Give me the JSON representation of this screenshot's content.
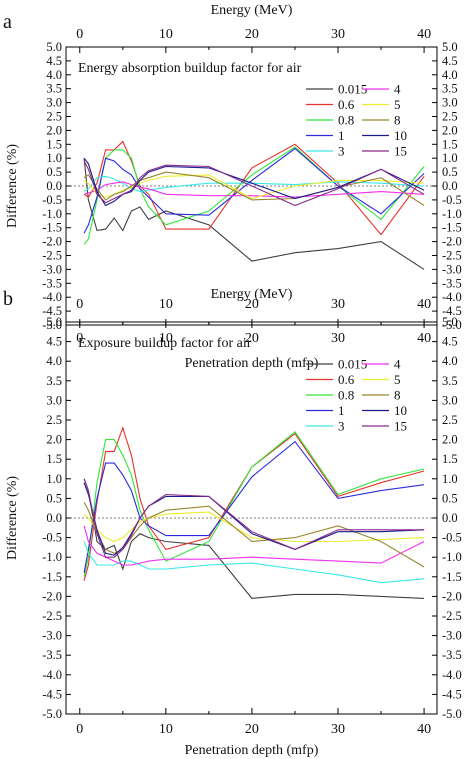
{
  "panels": [
    {
      "label": "a",
      "chart_data": {
        "type": "line",
        "title": "Energy absorption buildup factor for air",
        "xlabel": "Penetration depth (mfp)",
        "ylabel": "Difference (%)",
        "top_xlabel": "Energy (MeV)",
        "xlim": [
          -1.6,
          41.5
        ],
        "ylim": [
          -5.0,
          5.0
        ],
        "xticks": [
          0,
          10,
          20,
          30,
          40
        ],
        "yticks": [
          -5.0,
          -4.5,
          -4.0,
          -3.5,
          -3.0,
          -2.5,
          -2.0,
          -1.5,
          -1.0,
          -0.5,
          0.0,
          0.5,
          1.0,
          1.5,
          2.0,
          2.5,
          3.0,
          3.5,
          4.0,
          4.5,
          5.0
        ],
        "ytick_labels": [
          "-5.0",
          "-4.5",
          "-4.0",
          "-3.5",
          "-3.0",
          "-2.5",
          "-2.0",
          "-1.5",
          "-1.0",
          "-0.5",
          "0.0",
          "0.5",
          "1.0",
          "1.5",
          "2.0",
          "2.5",
          "3.0",
          "3.5",
          "4.0",
          "4.5",
          "5.0"
        ],
        "x": [
          0.5,
          1,
          2,
          3,
          4,
          5,
          6,
          7,
          8,
          10,
          15,
          20,
          25,
          30,
          35,
          40
        ],
        "series": [
          {
            "name": "0.015",
            "color": "#404040",
            "values": [
              1.0,
              -0.5,
              -1.6,
              -1.55,
              -1.15,
              -1.6,
              -0.9,
              -0.75,
              -1.2,
              -0.9,
              -1.4,
              -2.7,
              -2.4,
              -2.25,
              -2.0,
              -3.0
            ]
          },
          {
            "name": "0.6",
            "color": "#e8322a",
            "values": [
              -0.3,
              -0.4,
              0.1,
              1.3,
              1.3,
              1.6,
              0.9,
              0.0,
              -0.3,
              -1.55,
              -1.55,
              0.65,
              1.5,
              0.1,
              -1.75,
              0.35
            ]
          },
          {
            "name": "0.8",
            "color": "#2ee838",
            "values": [
              -2.1,
              -1.9,
              -0.5,
              1.0,
              1.3,
              1.3,
              1.0,
              -0.1,
              -0.75,
              -1.4,
              -0.9,
              0.4,
              1.4,
              0.0,
              -1.2,
              0.7
            ]
          },
          {
            "name": "1",
            "color": "#2a2ae0",
            "values": [
              -1.7,
              -1.4,
              -0.4,
              1.0,
              0.9,
              0.6,
              0.4,
              -0.1,
              -0.4,
              -1.0,
              -1.05,
              0.2,
              1.35,
              0.0,
              -1.0,
              0.45
            ]
          },
          {
            "name": "3",
            "color": "#38e8e8",
            "values": [
              -0.2,
              -0.1,
              0.3,
              0.35,
              0.25,
              0.1,
              -0.1,
              -0.2,
              -0.15,
              -0.05,
              0.1,
              0.1,
              0.05,
              0.15,
              0.1,
              0.0
            ]
          },
          {
            "name": "4",
            "color": "#f030f0",
            "values": [
              -0.3,
              -0.25,
              -0.15,
              0.05,
              0.1,
              0.15,
              0.05,
              -0.05,
              -0.1,
              -0.3,
              -0.35,
              -0.35,
              -0.4,
              -0.3,
              -0.2,
              -0.3
            ]
          },
          {
            "name": "5",
            "color": "#ecec30",
            "values": [
              0.2,
              0.1,
              -0.3,
              -0.4,
              -0.3,
              -0.15,
              -0.05,
              0.1,
              0.2,
              0.35,
              0.4,
              -0.45,
              0.0,
              0.2,
              0.2,
              0.1
            ]
          },
          {
            "name": "8",
            "color": "#9a8530",
            "values": [
              0.3,
              0.4,
              -0.1,
              -0.5,
              -0.3,
              -0.2,
              0.0,
              0.2,
              0.3,
              0.5,
              0.3,
              -0.5,
              -0.45,
              -0.05,
              0.3,
              -0.7
            ]
          },
          {
            "name": "10",
            "color": "#1a1a90",
            "values": [
              1.0,
              0.8,
              -0.2,
              -0.7,
              -0.55,
              -0.3,
              -0.2,
              0.2,
              0.5,
              0.7,
              0.65,
              0.1,
              -0.45,
              -0.05,
              0.6,
              -0.15
            ]
          },
          {
            "name": "15",
            "color": "#8a2a8a",
            "values": [
              0.9,
              0.6,
              -0.3,
              -0.6,
              -0.45,
              -0.3,
              -0.15,
              0.3,
              0.55,
              0.75,
              0.7,
              0.0,
              -0.7,
              -0.1,
              0.6,
              -0.3
            ]
          }
        ]
      }
    },
    {
      "label": "b",
      "chart_data": {
        "type": "line",
        "title": "Exposure buildup factor for air",
        "xlabel": "Penetration depth (mfp)",
        "ylabel": "Difference (%)",
        "top_xlabel": "Energy (MeV)",
        "xlim": [
          -1.6,
          41.5
        ],
        "ylim": [
          -5.0,
          5.0
        ],
        "xticks": [
          0,
          10,
          20,
          30,
          40
        ],
        "yticks": [
          -5.0,
          -4.5,
          -4.0,
          -3.5,
          -3.0,
          -2.5,
          -2.0,
          -1.5,
          -1.0,
          -0.5,
          0.0,
          0.5,
          1.0,
          1.5,
          2.0,
          2.5,
          3.0,
          3.5,
          4.0,
          4.5,
          5.0
        ],
        "ytick_labels": [
          "-5.0",
          "-4.5",
          "-4.0",
          "-3.5",
          "-3.0",
          "-2.5",
          "-2.0",
          "-1.5",
          "-1.0",
          "-0.5",
          "0.0",
          "0.5",
          "1.0",
          "1.5",
          "2.0",
          "2.5",
          "3.0",
          "3.5",
          "4.0",
          "4.5",
          "5.0"
        ],
        "x": [
          0.5,
          1,
          2,
          3,
          4,
          5,
          6,
          7,
          8,
          10,
          15,
          20,
          25,
          30,
          35,
          40
        ],
        "series": [
          {
            "name": "0.015",
            "color": "#404040",
            "values": [
              1.0,
              0.7,
              -0.6,
              -0.8,
              -0.7,
              -1.3,
              -0.6,
              -0.4,
              -0.5,
              -0.6,
              -0.7,
              -2.05,
              -1.95,
              -1.95,
              -2.0,
              -2.05
            ]
          },
          {
            "name": "0.6",
            "color": "#e8322a",
            "values": [
              -1.6,
              -1.2,
              0.4,
              1.7,
              1.7,
              2.3,
              1.6,
              0.5,
              -0.2,
              -0.8,
              -0.5,
              1.3,
              2.15,
              0.55,
              0.9,
              1.2
            ]
          },
          {
            "name": "0.8",
            "color": "#2ee838",
            "values": [
              -1.5,
              -1.0,
              0.9,
              2.0,
              2.0,
              1.6,
              1.1,
              0.2,
              -0.3,
              -1.1,
              -0.6,
              1.3,
              2.2,
              0.6,
              1.0,
              1.25
            ]
          },
          {
            "name": "1",
            "color": "#2a2ae0",
            "values": [
              -1.4,
              -0.8,
              0.5,
              1.4,
              1.4,
              1.1,
              0.7,
              0.0,
              -0.2,
              -0.45,
              -0.45,
              1.05,
              1.95,
              0.5,
              0.7,
              0.85
            ]
          },
          {
            "name": "3",
            "color": "#38e8e8",
            "values": [
              -0.6,
              -0.9,
              -1.2,
              -1.2,
              -1.2,
              -1.1,
              -1.1,
              -1.2,
              -1.3,
              -1.3,
              -1.2,
              -1.15,
              -1.3,
              -1.45,
              -1.65,
              -1.55
            ]
          },
          {
            "name": "4",
            "color": "#f030f0",
            "values": [
              -0.2,
              -0.6,
              -0.9,
              -1.0,
              -1.1,
              -1.2,
              -1.2,
              -1.15,
              -1.1,
              -1.05,
              -1.05,
              -1.0,
              -1.05,
              -1.1,
              -1.15,
              -0.6
            ]
          },
          {
            "name": "5",
            "color": "#ecec30",
            "values": [
              0.1,
              0.0,
              -0.3,
              -0.5,
              -0.6,
              -0.5,
              -0.3,
              -0.1,
              0.0,
              0.1,
              0.15,
              -0.5,
              -0.6,
              -0.6,
              -0.55,
              -0.5
            ]
          },
          {
            "name": "8",
            "color": "#9a8530",
            "values": [
              0.4,
              0.2,
              -0.4,
              -0.8,
              -0.9,
              -0.8,
              -0.5,
              -0.2,
              0.0,
              0.2,
              0.3,
              -0.6,
              -0.5,
              -0.2,
              -0.6,
              -1.25
            ]
          },
          {
            "name": "10",
            "color": "#1a1a90",
            "values": [
              0.9,
              0.6,
              -0.3,
              -0.9,
              -0.95,
              -0.75,
              -0.4,
              0.0,
              0.3,
              0.55,
              0.55,
              -0.4,
              -0.8,
              -0.35,
              -0.35,
              -0.3
            ]
          },
          {
            "name": "15",
            "color": "#8a2a8a",
            "values": [
              1.0,
              0.7,
              -0.4,
              -1.0,
              -1.0,
              -0.8,
              -0.45,
              0.0,
              0.3,
              0.6,
              0.55,
              -0.35,
              -0.8,
              -0.3,
              -0.3,
              -0.3
            ]
          }
        ]
      }
    }
  ]
}
